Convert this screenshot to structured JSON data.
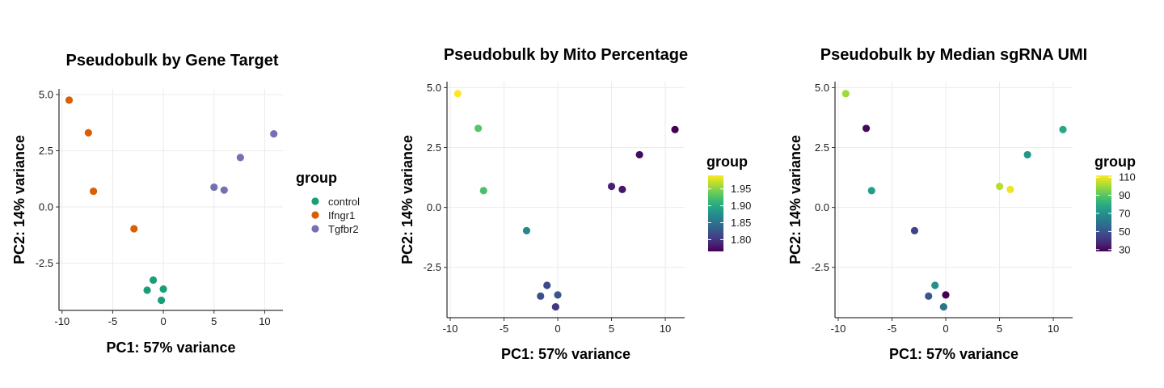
{
  "chart_data": [
    {
      "type": "scatter",
      "title": "Pseudobulk by Gene Target",
      "xlabel": "PC1: 57% variance",
      "ylabel": "PC2: 14% variance",
      "xlim": [
        -10.3,
        11.8
      ],
      "ylim": [
        -4.6,
        5.25
      ],
      "xticks": [
        -10,
        -5,
        0,
        5,
        10
      ],
      "xtick_labels": [
        "-10",
        "-5",
        "0",
        "5",
        "10"
      ],
      "yticks": [
        -2.5,
        0,
        2.5,
        5
      ],
      "ytick_labels": [
        "-2.5",
        "0.0",
        "2.5",
        "5.0"
      ],
      "grid": true,
      "legend": {
        "title": "group",
        "kind": "discrete",
        "position": "right",
        "entries": [
          {
            "label": "control",
            "color": "#1b9e77"
          },
          {
            "label": "Ifngr1",
            "color": "#d95f02"
          },
          {
            "label": "Tgfbr2",
            "color": "#7570b3"
          }
        ]
      },
      "points": [
        {
          "x": -9.3,
          "y": 4.75,
          "group": "Ifngr1"
        },
        {
          "x": -7.4,
          "y": 3.3,
          "group": "Ifngr1"
        },
        {
          "x": -6.9,
          "y": 0.7,
          "group": "Ifngr1"
        },
        {
          "x": -2.9,
          "y": -0.97,
          "group": "Ifngr1"
        },
        {
          "x": 5.0,
          "y": 0.88,
          "group": "Tgfbr2"
        },
        {
          "x": 6.0,
          "y": 0.75,
          "group": "Tgfbr2"
        },
        {
          "x": 7.6,
          "y": 2.2,
          "group": "Tgfbr2"
        },
        {
          "x": 10.9,
          "y": 3.25,
          "group": "Tgfbr2"
        },
        {
          "x": -1.0,
          "y": -3.25,
          "group": "control"
        },
        {
          "x": -1.6,
          "y": -3.7,
          "group": "control"
        },
        {
          "x": 0.0,
          "y": -3.65,
          "group": "control"
        },
        {
          "x": -0.2,
          "y": -4.15,
          "group": "control"
        }
      ]
    },
    {
      "type": "scatter",
      "title": "Pseudobulk by Mito Percentage",
      "xlabel": "PC1: 57% variance",
      "ylabel": "PC2: 14% variance",
      "xlim": [
        -10.3,
        11.8
      ],
      "ylim": [
        -4.6,
        5.25
      ],
      "xticks": [
        -10,
        -5,
        0,
        5,
        10
      ],
      "xtick_labels": [
        "-10",
        "-5",
        "0",
        "5",
        "10"
      ],
      "yticks": [
        -2.5,
        0,
        2.5,
        5
      ],
      "ytick_labels": [
        "-2.5",
        "0.0",
        "2.5",
        "5.0"
      ],
      "grid": true,
      "legend": {
        "title": "group",
        "kind": "continuous",
        "position": "right",
        "min": 1.765,
        "max": 1.99,
        "ticks": [
          1.8,
          1.85,
          1.9,
          1.95
        ],
        "tick_labels": [
          "1.80",
          "1.85",
          "1.90",
          "1.95"
        ]
      },
      "points": [
        {
          "x": -9.3,
          "y": 4.75,
          "value": 1.99
        },
        {
          "x": -7.4,
          "y": 3.3,
          "value": 1.93
        },
        {
          "x": -6.9,
          "y": 0.7,
          "value": 1.925
        },
        {
          "x": -2.9,
          "y": -0.97,
          "value": 1.87
        },
        {
          "x": 5.0,
          "y": 0.88,
          "value": 1.785
        },
        {
          "x": 6.0,
          "y": 0.75,
          "value": 1.78
        },
        {
          "x": 7.6,
          "y": 2.2,
          "value": 1.77
        },
        {
          "x": 10.9,
          "y": 3.25,
          "value": 1.765
        },
        {
          "x": -1.0,
          "y": -3.25,
          "value": 1.815
        },
        {
          "x": -1.6,
          "y": -3.7,
          "value": 1.82
        },
        {
          "x": 0.0,
          "y": -3.65,
          "value": 1.825
        },
        {
          "x": -0.2,
          "y": -4.15,
          "value": 1.8
        }
      ]
    },
    {
      "type": "scatter",
      "title": "Pseudobulk by Median sgRNA UMI",
      "xlabel": "PC1: 57% variance",
      "ylabel": "PC2: 14% variance",
      "xlim": [
        -10.3,
        11.8
      ],
      "ylim": [
        -4.6,
        5.25
      ],
      "xticks": [
        -10,
        -5,
        0,
        5,
        10
      ],
      "xtick_labels": [
        "-10",
        "-5",
        "0",
        "5",
        "10"
      ],
      "yticks": [
        -2.5,
        0,
        2.5,
        5
      ],
      "ytick_labels": [
        "-2.5",
        "0.0",
        "2.5",
        "5.0"
      ],
      "grid": true,
      "legend": {
        "title": "group",
        "kind": "continuous",
        "position": "right",
        "min": 28,
        "max": 112,
        "ticks": [
          30,
          50,
          70,
          90,
          110
        ],
        "tick_labels": [
          "30",
          "50",
          "70",
          "90",
          "110"
        ]
      },
      "points": [
        {
          "x": -9.3,
          "y": 4.75,
          "value": 100
        },
        {
          "x": -7.4,
          "y": 3.3,
          "value": 30
        },
        {
          "x": -6.9,
          "y": 0.7,
          "value": 75
        },
        {
          "x": -2.9,
          "y": -0.97,
          "value": 45
        },
        {
          "x": 5.0,
          "y": 0.88,
          "value": 103
        },
        {
          "x": 6.0,
          "y": 0.75,
          "value": 110
        },
        {
          "x": 7.6,
          "y": 2.2,
          "value": 72
        },
        {
          "x": 10.9,
          "y": 3.25,
          "value": 78
        },
        {
          "x": -1.0,
          "y": -3.25,
          "value": 70
        },
        {
          "x": -1.6,
          "y": -3.7,
          "value": 50
        },
        {
          "x": 0.0,
          "y": -3.65,
          "value": 28
        },
        {
          "x": -0.2,
          "y": -4.15,
          "value": 60
        }
      ]
    }
  ]
}
